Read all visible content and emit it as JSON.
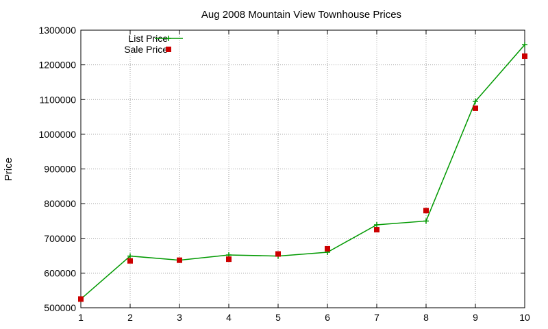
{
  "chart_data": {
    "type": "line",
    "title": "Aug 2008 Mountain View Townhouse Prices",
    "xlabel": "",
    "ylabel": "Price",
    "x": [
      1,
      2,
      3,
      4,
      5,
      6,
      7,
      8,
      9,
      10
    ],
    "xlim": [
      1,
      10
    ],
    "ylim": [
      500000,
      1300000
    ],
    "yticks": [
      500000,
      600000,
      700000,
      800000,
      900000,
      1000000,
      1100000,
      1200000,
      1300000
    ],
    "xticks": [
      1,
      2,
      3,
      4,
      5,
      6,
      7,
      8,
      9,
      10
    ],
    "grid": true,
    "legend_position": "top-left",
    "series": [
      {
        "name": "List Price",
        "style": "line+cross",
        "color": "#009900",
        "values": [
          525000,
          649000,
          637000,
          652000,
          649000,
          660000,
          739000,
          750000,
          1095000,
          1258000
        ]
      },
      {
        "name": "Sale Price",
        "style": "square",
        "color": "#cc0000",
        "values": [
          525000,
          635000,
          637000,
          640000,
          655000,
          670000,
          725000,
          780000,
          1075000,
          1225000
        ]
      }
    ]
  }
}
